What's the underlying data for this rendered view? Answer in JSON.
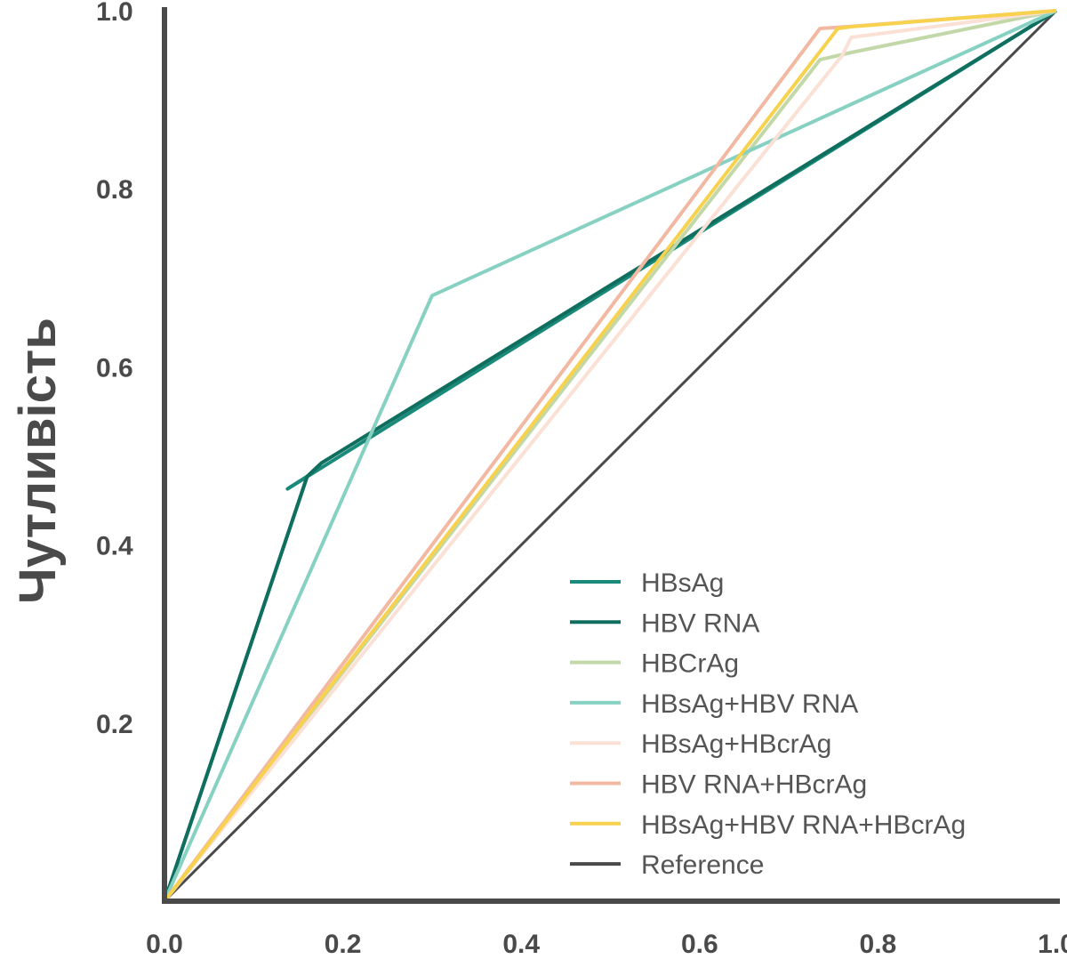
{
  "chart_data": {
    "type": "line",
    "ylabel": "Чутливість",
    "xlabel": "",
    "xlim": [
      0,
      1
    ],
    "ylim": [
      0,
      1
    ],
    "x_ticks": [
      "0.0",
      "0.2",
      "0.4",
      "0.6",
      "0.8",
      "1.0"
    ],
    "y_ticks": [
      "0.2",
      "0.4",
      "0.6",
      "0.8",
      "1.0"
    ],
    "grid": false,
    "legend_position": "bottom-right",
    "series": [
      {
        "name": "HBsAg",
        "color": "#1a8a7a",
        "points": [
          [
            0,
            0
          ],
          [
            0.16,
            0.477
          ],
          [
            0.138,
            0.463
          ],
          [
            1,
            1
          ]
        ]
      },
      {
        "name": "HBV RNA",
        "color": "#0f6e5e",
        "points": [
          [
            0,
            0
          ],
          [
            0.16,
            0.477
          ],
          [
            0.176,
            0.492
          ],
          [
            1,
            1
          ]
        ]
      },
      {
        "name": "HBCrAg",
        "color": "#c3d8a8",
        "points": [
          [
            0,
            0
          ],
          [
            0.735,
            0.945
          ],
          [
            0.77,
            0.953
          ],
          [
            1,
            1
          ]
        ]
      },
      {
        "name": "HBsAg+HBV RNA",
        "color": "#86d1c2",
        "points": [
          [
            0,
            0
          ],
          [
            0.3,
            0.68
          ],
          [
            1,
            1
          ]
        ]
      },
      {
        "name": "HBsAg+HBcrAg",
        "color": "#fbe0d6",
        "points": [
          [
            0,
            0
          ],
          [
            0.76,
            0.95
          ],
          [
            0.77,
            0.97
          ],
          [
            1,
            1
          ]
        ]
      },
      {
        "name": "HBV RNA+HBcrAg",
        "color": "#f2b8a2",
        "points": [
          [
            0,
            0
          ],
          [
            0.735,
            0.98
          ],
          [
            0.766,
            0.982
          ],
          [
            1,
            1
          ]
        ]
      },
      {
        "name": "HBsAg+HBV RNA+HBcrAg",
        "color": "#f7d24e",
        "points": [
          [
            0,
            0
          ],
          [
            0.755,
            0.98
          ],
          [
            0.77,
            0.982
          ],
          [
            1,
            1
          ]
        ]
      },
      {
        "name": "Reference",
        "color": "#4a4a4a",
        "points": [
          [
            0,
            0
          ],
          [
            1,
            1
          ]
        ]
      }
    ]
  }
}
